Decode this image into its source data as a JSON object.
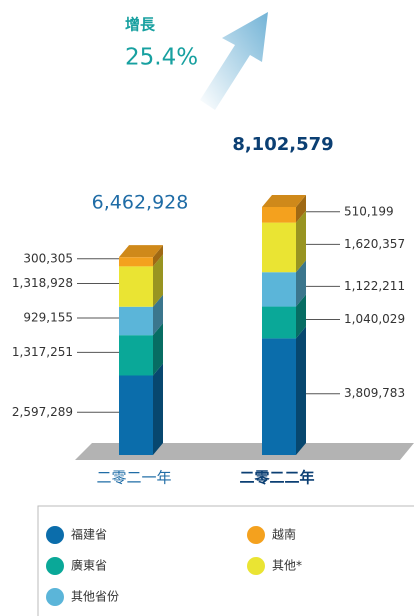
{
  "chart_data": {
    "type": "stacked-bar",
    "annotation": {
      "label": "增長",
      "value_label": "25.4%"
    },
    "categories": [
      "二零二一年",
      "二零二二年"
    ],
    "totals": [
      6462928,
      8102579
    ],
    "total_labels": [
      "6,462,928",
      "8,102,579"
    ],
    "series": [
      {
        "name": "福建省",
        "color": "#0b6dab",
        "values": [
          2597289,
          3809783
        ],
        "value_labels": [
          "2,597,289",
          "3,809,783"
        ]
      },
      {
        "name": "廣東省",
        "color": "#0aa898",
        "values": [
          1317251,
          1040029
        ],
        "value_labels": [
          "1,317,251",
          "1,040,029"
        ]
      },
      {
        "name": "其他省份",
        "color": "#5bb5d9",
        "values": [
          929155,
          1122211
        ],
        "value_labels": [
          "929,155",
          "1,122,211"
        ]
      },
      {
        "name": "其他*",
        "color": "#eae433",
        "values": [
          1318928,
          1620357
        ],
        "value_labels": [
          "1,318,928",
          "1,620,357"
        ]
      },
      {
        "name": "越南",
        "color": "#f4a11e",
        "values": [
          300305,
          510199
        ],
        "value_labels": [
          "300,305",
          "510,199"
        ]
      }
    ]
  }
}
